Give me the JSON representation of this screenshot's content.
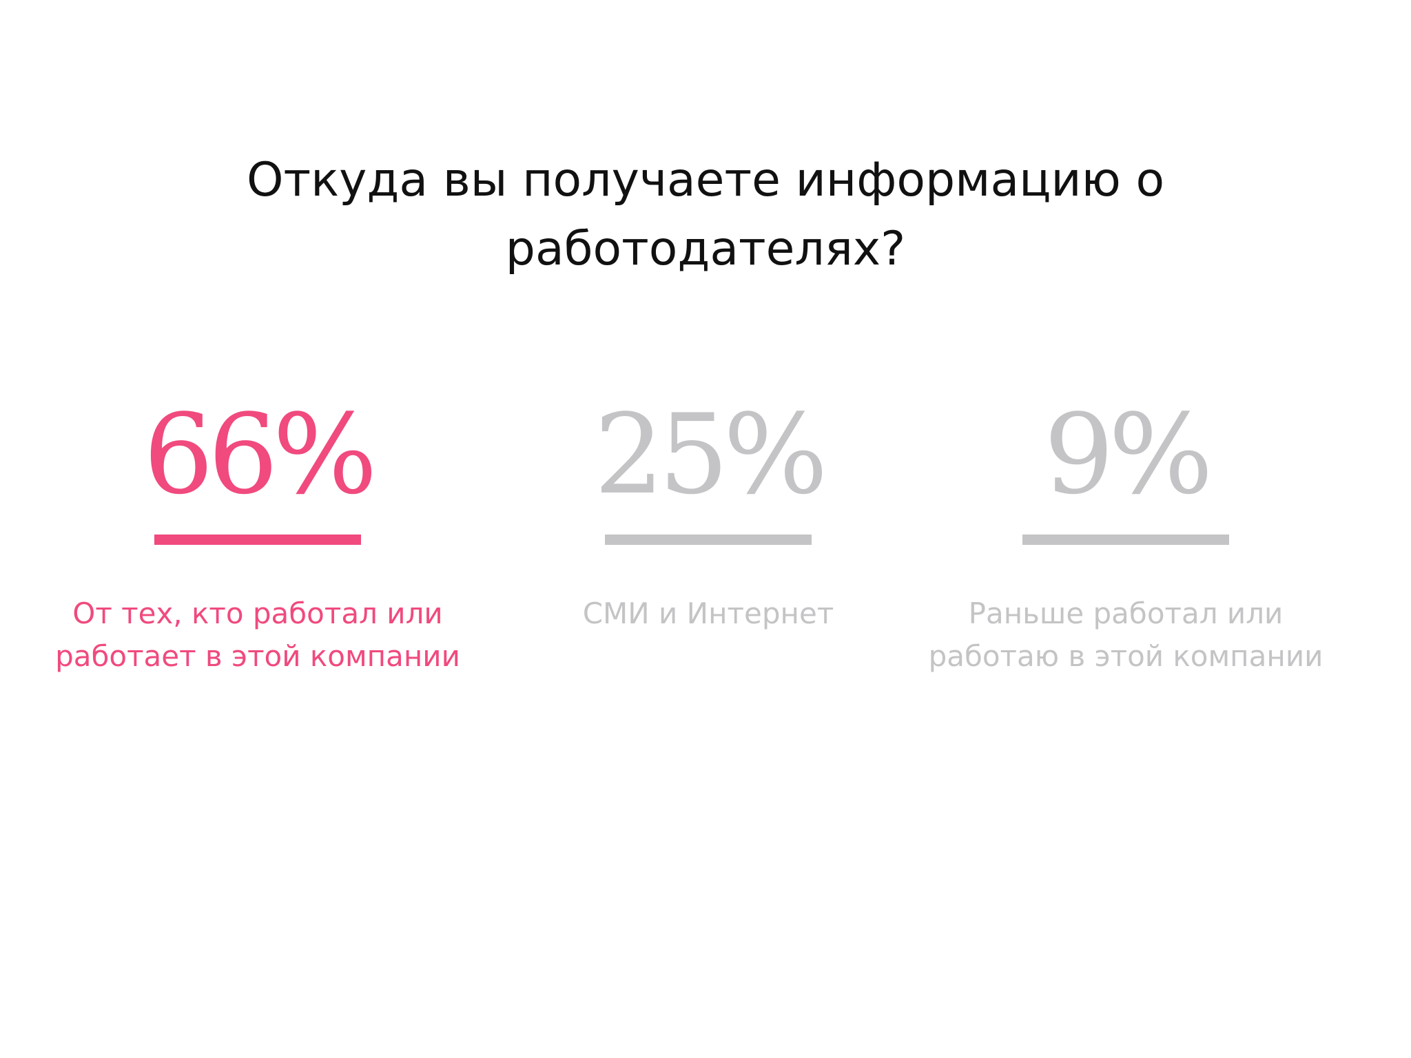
{
  "title": "Откуда вы получаете информацию о работодателях?",
  "colors": {
    "accent": "#f04a7e",
    "muted": "#c4c3c6",
    "title": "#111111"
  },
  "chart_data": {
    "type": "bar",
    "title": "Откуда вы получаете информацию о работодателях?",
    "unit": "%",
    "categories": [
      "От тех, кто работал или работает в этой компании",
      "СМИ и Интернет",
      "Раньше работал или работаю в этой компании"
    ],
    "values": [
      66,
      25,
      9
    ],
    "highlighted_index": 0
  },
  "stats": [
    {
      "value_label": "66%",
      "label": "От тех, кто работал или работает в этой компании",
      "color": "#f04a7e"
    },
    {
      "value_label": "25%",
      "label": "СМИ и Интернет",
      "color": "#c4c3c6"
    },
    {
      "value_label": "9%",
      "label": "Раньше работал или работаю в этой компании",
      "color": "#c4c3c6"
    }
  ]
}
